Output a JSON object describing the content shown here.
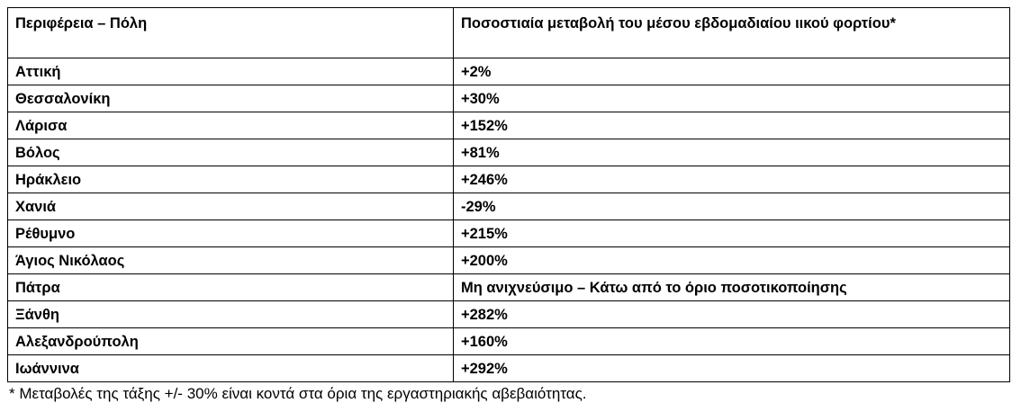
{
  "table": {
    "header": [
      "Περιφέρεια – Πόλη",
      "Ποσοστιαία μεταβολή του μέσου εβδομαδιαίου ιικού φορτίου*"
    ],
    "rows": [
      [
        "Αττική",
        "+2%"
      ],
      [
        "Θεσσαλονίκη",
        "+30%"
      ],
      [
        "Λάρισα",
        "+152%"
      ],
      [
        "Βόλος",
        "+81%"
      ],
      [
        "Ηράκλειο",
        "+246%"
      ],
      [
        "Χανιά",
        "-29%"
      ],
      [
        "Ρέθυμνο",
        "+215%"
      ],
      [
        "Άγιος Νικόλαος",
        "+200%"
      ],
      [
        "Πάτρα",
        "Μη ανιχνεύσιμο – Κάτω από το όριο ποσοτικοποίησης"
      ],
      [
        "Ξάνθη",
        "+282%"
      ],
      [
        "Αλεξανδρούπολη",
        "+160%"
      ],
      [
        "Ιωάννινα",
        "+292%"
      ]
    ]
  },
  "footnote": "* Μεταβολές της τάξης +/- 30% είναι κοντά στα όρια της εργαστηριακής αβεβαιότητας."
}
